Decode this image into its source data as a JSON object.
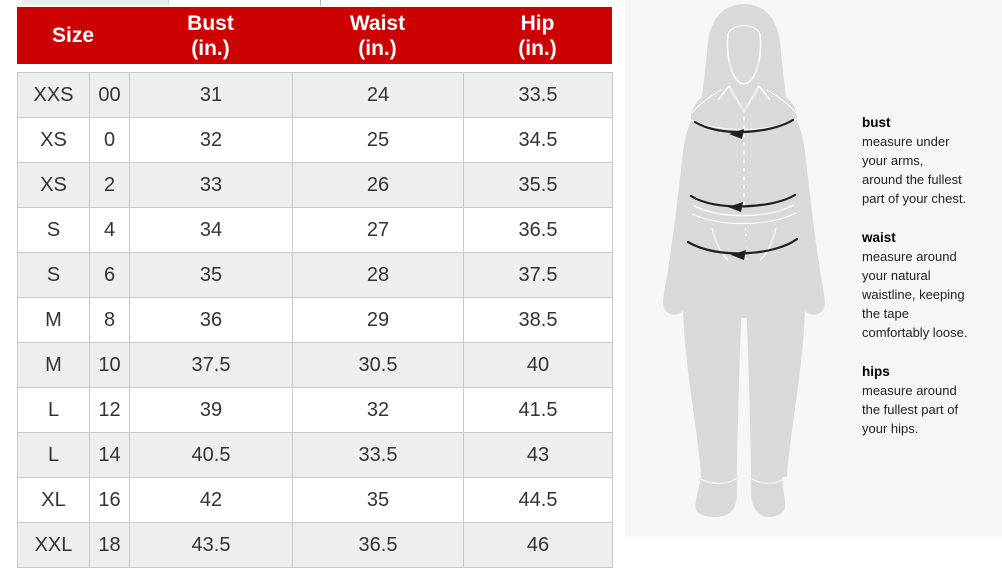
{
  "size_chart": {
    "columns": [
      {
        "label": "Size",
        "unit": ""
      },
      {
        "label": "Bust",
        "unit": "(in.)"
      },
      {
        "label": "Waist",
        "unit": "(in.)"
      },
      {
        "label": "Hip",
        "unit": "(in.)"
      }
    ],
    "rows": [
      {
        "size": "XXS",
        "num": "00",
        "bust": "31",
        "waist": "24",
        "hip": "33.5"
      },
      {
        "size": "XS",
        "num": "0",
        "bust": "32",
        "waist": "25",
        "hip": "34.5"
      },
      {
        "size": "XS",
        "num": "2",
        "bust": "33",
        "waist": "26",
        "hip": "35.5"
      },
      {
        "size": "S",
        "num": "4",
        "bust": "34",
        "waist": "27",
        "hip": "36.5"
      },
      {
        "size": "S",
        "num": "6",
        "bust": "35",
        "waist": "28",
        "hip": "37.5"
      },
      {
        "size": "M",
        "num": "8",
        "bust": "36",
        "waist": "29",
        "hip": "38.5"
      },
      {
        "size": "M",
        "num": "10",
        "bust": "37.5",
        "waist": "30.5",
        "hip": "40"
      },
      {
        "size": "L",
        "num": "12",
        "bust": "39",
        "waist": "32",
        "hip": "41.5"
      },
      {
        "size": "L",
        "num": "14",
        "bust": "40.5",
        "waist": "33.5",
        "hip": "43"
      },
      {
        "size": "XL",
        "num": "16",
        "bust": "42",
        "waist": "35",
        "hip": "44.5"
      },
      {
        "size": "XXL",
        "num": "18",
        "bust": "43.5",
        "waist": "36.5",
        "hip": "46"
      }
    ],
    "colors": {
      "accent": "#cc0000",
      "header_text": "#ffffff",
      "row_shade": "#eeeeee",
      "row_alt": "#ffffff",
      "border": "#c9c9c9",
      "cell_text": "#333333"
    }
  },
  "guide": {
    "sections": [
      {
        "title": "bust",
        "desc": "measure under\nyour arms,\naround the fullest\npart of your chest."
      },
      {
        "title": "waist",
        "desc": "measure around\nyour natural\nwaistline, keeping\nthe tape\ncomfortably loose."
      },
      {
        "title": "hips",
        "desc": "measure around\nthe fullest part of\nyour hips."
      }
    ],
    "colors": {
      "panel_bg": "#f6f6f7",
      "silhouette": "#d7d9da",
      "arrow": "#1f1f1f"
    }
  }
}
